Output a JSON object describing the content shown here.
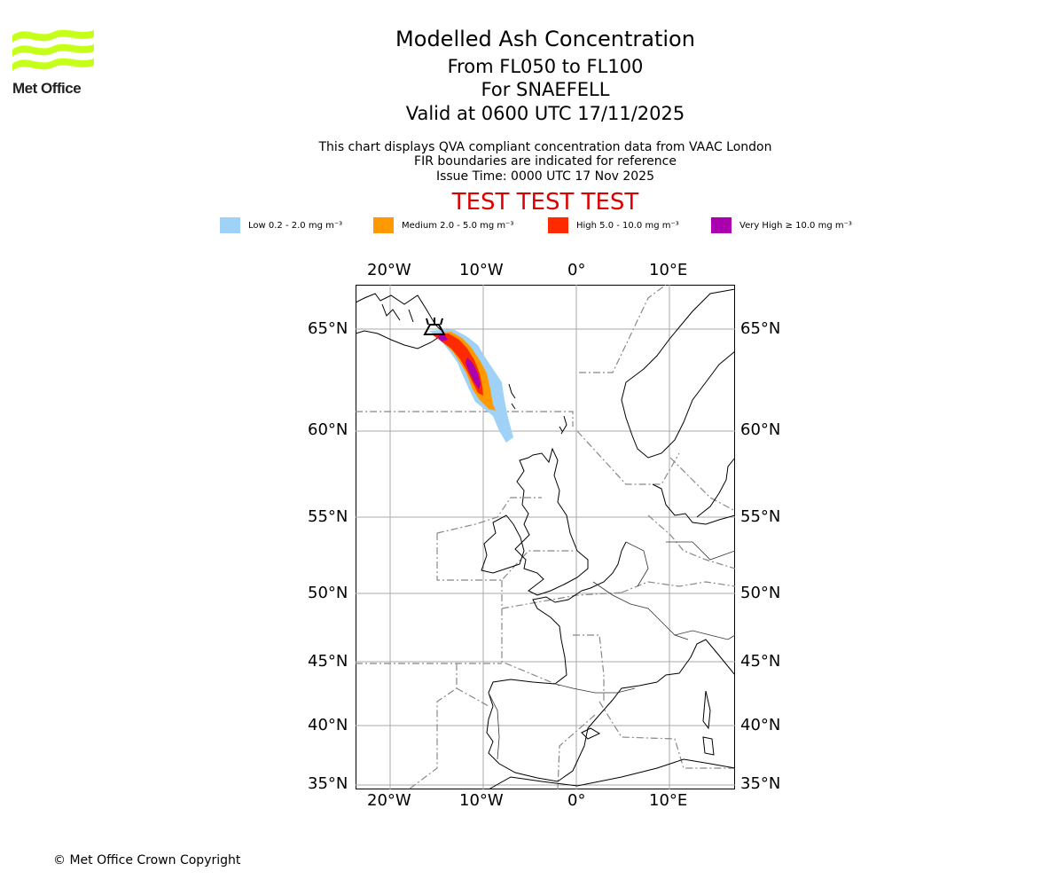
{
  "header": {
    "logo_text": "Met Office",
    "title": "Modelled Ash Concentration",
    "flight_levels": "From FL050 to FL100",
    "volcano": "For SNAEFELL",
    "valid_time": "Valid at 0600 UTC 17/11/2025",
    "note_1": "This chart displays QVA compliant concentration data from VAAC London",
    "note_2": "FIR boundaries are indicated for reference",
    "issue_time": "Issue Time: 0000 UTC 17 Nov 2025",
    "test_banner": "TEST TEST TEST"
  },
  "legend": {
    "items": [
      {
        "label": "Low 0.2 - 2.0 mg m⁻³",
        "color": "#a0d2f8"
      },
      {
        "label": "Medium 2.0 - 5.0 mg m⁻³",
        "color": "#ff9900"
      },
      {
        "label": "High 5.0 - 10.0 mg m⁻³",
        "color": "#ff2a00"
      },
      {
        "label": "Very High  ≥  10.0 mg m⁻³",
        "color": "#aa00b0"
      }
    ]
  },
  "map": {
    "lon_labels": [
      "20°W",
      "10°W",
      "0°",
      "10°E"
    ],
    "lat_labels": [
      "65°N",
      "60°N",
      "55°N",
      "50°N",
      "45°N",
      "40°N",
      "35°N"
    ],
    "volcano_icon": "volcano-icon"
  },
  "footer": {
    "copyright": "© Met Office Crown Copyright"
  }
}
